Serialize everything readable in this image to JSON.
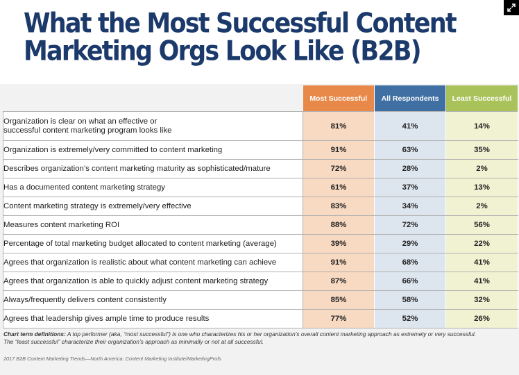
{
  "title": {
    "line1": "What the Most Successful Content",
    "line2": "Marketing Orgs Look Like (B2B)"
  },
  "chart_data": {
    "type": "table",
    "columns": [
      "Most Successful",
      "All Respondents",
      "Least Successful"
    ],
    "rows": [
      {
        "label": "Organization is clear on what an effective or\nsuccessful content marketing program looks like",
        "values": [
          "81%",
          "41%",
          "14%"
        ]
      },
      {
        "label": "Organization is extremely/very committed to content marketing",
        "values": [
          "91%",
          "63%",
          "35%"
        ]
      },
      {
        "label": "Describes organization’s content marketing maturity as sophisticated/mature",
        "values": [
          "72%",
          "28%",
          "2%"
        ]
      },
      {
        "label": "Has a documented content marketing strategy",
        "values": [
          "61%",
          "37%",
          "13%"
        ]
      },
      {
        "label": "Content marketing strategy is extremely/very effective",
        "values": [
          "83%",
          "34%",
          "2%"
        ]
      },
      {
        "label": "Measures content marketing ROI",
        "values": [
          "88%",
          "72%",
          "56%"
        ]
      },
      {
        "label": "Percentage of total marketing budget allocated to content marketing (average)",
        "values": [
          "39%",
          "29%",
          "22%"
        ]
      },
      {
        "label": "Agrees that organization is realistic about what content marketing can achieve",
        "values": [
          "91%",
          "68%",
          "41%"
        ]
      },
      {
        "label": "Agrees that organization is able to quickly adjust content marketing strategy",
        "values": [
          "87%",
          "66%",
          "41%"
        ]
      },
      {
        "label": "Always/frequently delivers content consistently",
        "values": [
          "85%",
          "58%",
          "32%"
        ]
      },
      {
        "label": "Agrees that leadership gives ample time to produce results",
        "values": [
          "77%",
          "52%",
          "26%"
        ]
      }
    ],
    "column_colors": {
      "most_header": "#e8894a",
      "most_cell": "#f8d9c1",
      "all_header": "#3f6fa3",
      "all_cell": "#dde5ee",
      "least_header": "#a9c25a",
      "least_cell": "#f1f2d2"
    }
  },
  "footnote": {
    "term_label": "Chart term definitions:",
    "text1": " A top performer (aka, “most successful”) is one who characterizes his or her organization’s overall content marketing approach as extremely or very successful.",
    "text2": "The “least successful” characterize their organization’s approach as minimally or not at all successful."
  },
  "source": "2017 B2B Content Marketing Trends—North America: Content Marketing Institute/MarketingProfs",
  "icons": {
    "corner": "expand-icon"
  }
}
